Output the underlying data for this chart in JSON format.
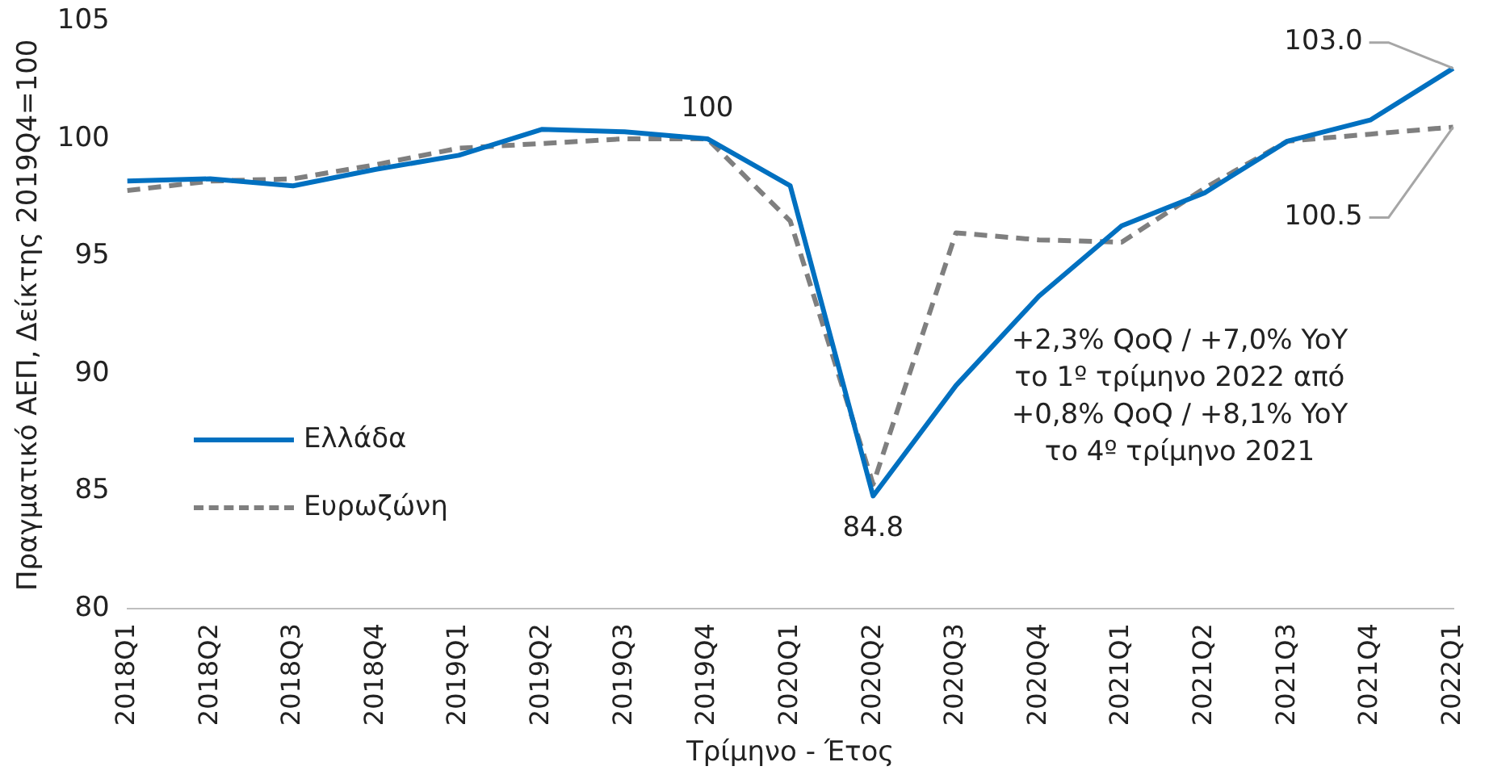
{
  "chart_data": {
    "type": "line",
    "xlabel": "Τρίμηνο - Έτος",
    "ylabel": "Πραγματικό ΑΕΠ, Δείκτης 2019Q4=100",
    "categories": [
      "2018Q1",
      "2018Q2",
      "2018Q3",
      "2018Q4",
      "2019Q1",
      "2019Q2",
      "2019Q3",
      "2019Q4",
      "2020Q1",
      "2020Q2",
      "2020Q3",
      "2020Q4",
      "2021Q1",
      "2021Q2",
      "2021Q3",
      "2021Q4",
      "2022Q1"
    ],
    "series": [
      {
        "name": "Ελλάδα",
        "color": "#0070c0",
        "line_style": "solid",
        "values": [
          98.2,
          98.3,
          98.0,
          98.7,
          99.3,
          100.4,
          100.3,
          100.0,
          98.0,
          84.8,
          89.5,
          93.3,
          96.3,
          97.7,
          99.9,
          100.8,
          103.0
        ]
      },
      {
        "name": "Ευρωζώνη",
        "color": "#7f7f7f",
        "line_style": "dashed",
        "values": [
          97.8,
          98.2,
          98.3,
          98.9,
          99.6,
          99.8,
          100.0,
          100.0,
          96.5,
          85.3,
          96.0,
          95.7,
          95.6,
          97.9,
          99.9,
          100.2,
          100.5
        ]
      }
    ],
    "ylim": [
      80,
      105
    ],
    "yticks": [
      80,
      85,
      90,
      95,
      100,
      105
    ],
    "grid": false,
    "legend": "left",
    "marker": "none",
    "annotations": [
      {
        "text": "100",
        "x": "2019Q4",
        "y": 100
      },
      {
        "text": "84.8",
        "x": "2020Q2",
        "y": 84.8
      },
      {
        "text": "103.0",
        "x": "2022Q1",
        "y": 103.0
      },
      {
        "text": "100.5",
        "x": "2022Q1",
        "y": 100.5
      },
      "+2,3% QoQ / +7,0% YoY\nτο 1º τρίμηνο 2022 από\n+0,8% QoQ / +8,1% YoY\nτο 4º τρίμηνο 2021"
    ]
  }
}
